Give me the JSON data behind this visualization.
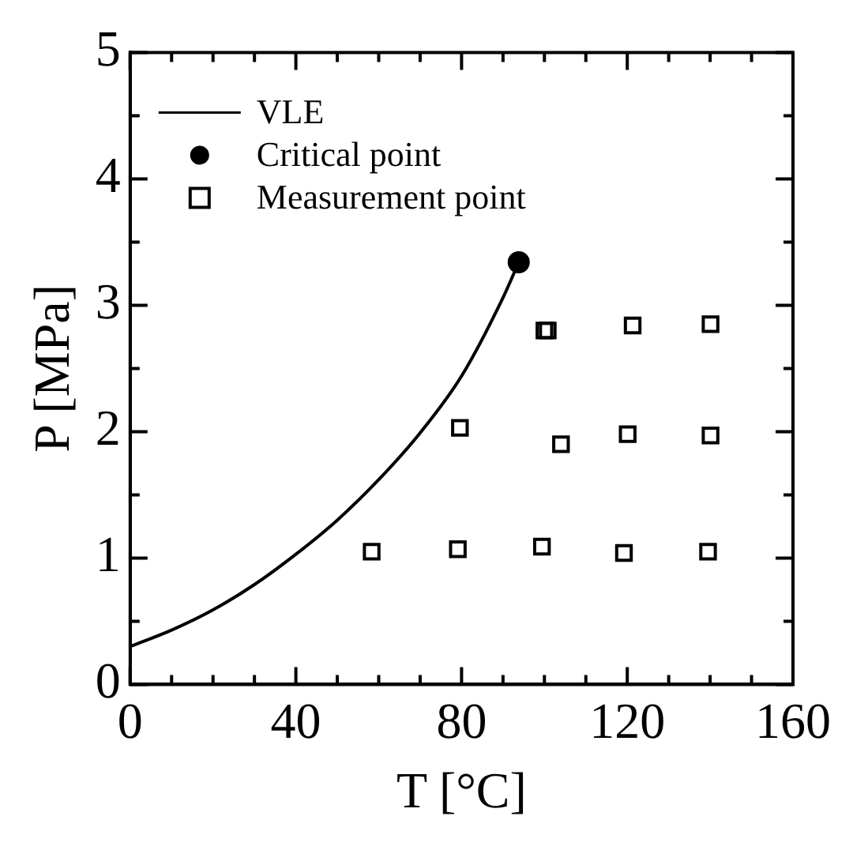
{
  "chart_data": {
    "type": "scatter",
    "xlabel": "T [°C]",
    "ylabel": "P [MPa]",
    "xlim": [
      0,
      160
    ],
    "ylim": [
      0,
      5
    ],
    "xticks": [
      0,
      {
        "value": 10,
        "label": null
      },
      {
        "value": 20,
        "label": null
      },
      {
        "value": 30,
        "label": null
      },
      40,
      {
        "value": 50,
        "label": null
      },
      {
        "value": 60,
        "label": null
      },
      {
        "value": 70,
        "label": null
      },
      80,
      {
        "value": 90,
        "label": null
      },
      {
        "value": 100,
        "label": null
      },
      {
        "value": 110,
        "label": null
      },
      120,
      {
        "value": 130,
        "label": null
      },
      {
        "value": 140,
        "label": null
      },
      {
        "value": 150,
        "label": null
      },
      160
    ],
    "yticks": [
      0,
      {
        "value": 0.5,
        "label": null
      },
      1,
      {
        "value": 1.5,
        "label": null
      },
      2,
      {
        "value": 2.5,
        "label": null
      },
      3,
      {
        "value": 3.5,
        "label": null
      },
      4,
      {
        "value": 4.5,
        "label": null
      },
      5
    ],
    "grid": false,
    "legend": "top left",
    "series": [
      {
        "name": "VLE",
        "type": "line",
        "color": "#000000",
        "marker": "none",
        "line_style": "solid",
        "x": [
          0,
          10,
          20,
          30,
          40,
          50,
          60,
          70,
          80,
          90,
          93.8
        ],
        "values": [
          0.3,
          0.43,
          0.59,
          0.79,
          1.03,
          1.3,
          1.62,
          1.99,
          2.44,
          3.06,
          3.34
        ]
      },
      {
        "name": "Critical point",
        "type": "scatter",
        "color": "#000000",
        "marker": "circle",
        "x": [
          93.8
        ],
        "values": [
          3.34
        ]
      },
      {
        "name": "Measurement point",
        "type": "scatter",
        "color": "#000000",
        "marker": "square",
        "x": [
          58.3,
          79.1,
          99.4,
          119.2,
          139.5,
          79.6,
          104,
          120.1,
          140.1,
          100,
          100.8,
          121.3,
          140.1
        ],
        "values": [
          1.05,
          1.07,
          1.09,
          1.04,
          1.05,
          2.03,
          1.9,
          1.98,
          1.97,
          2.8,
          2.8,
          2.84,
          2.85
        ]
      }
    ]
  }
}
